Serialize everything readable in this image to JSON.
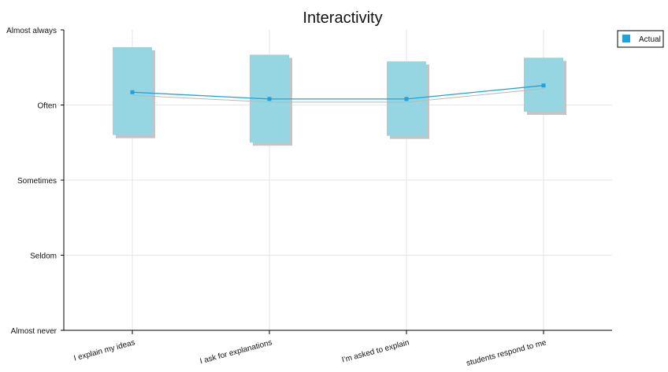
{
  "chart_data": {
    "type": "line",
    "title": "Interactivity",
    "categories": [
      "I explain my ideas",
      "I ask for explanations",
      "I'm asked to explain",
      "students respond to me"
    ],
    "y_scale_labels": [
      "Almost never",
      "Seldom",
      "Sometimes",
      "Often",
      "Almost always"
    ],
    "ylim": [
      0,
      4
    ],
    "series": [
      {
        "name": "Actual",
        "values": [
          3.17,
          3.08,
          3.08,
          3.26
        ]
      }
    ],
    "ranges": [
      {
        "low": 2.6,
        "high": 3.77
      },
      {
        "low": 2.5,
        "high": 3.67
      },
      {
        "low": 2.59,
        "high": 3.58
      },
      {
        "low": 2.91,
        "high": 3.63
      }
    ],
    "grid": true,
    "legend_position": "top-right",
    "colors": {
      "series": "#1aa3e0",
      "range_fill": "#96d6e2",
      "range_shadow": "#c4c4c4",
      "axis": "#000000",
      "grid": "#e6e6e6"
    }
  }
}
